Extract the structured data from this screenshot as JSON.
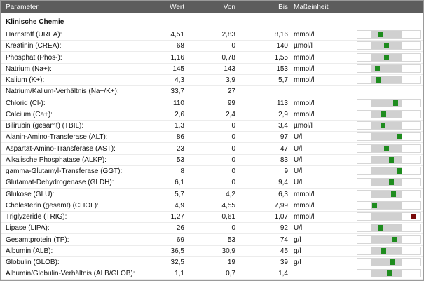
{
  "header": {
    "parameter": "Parameter",
    "wert": "Wert",
    "von": "Von",
    "bis": "Bis",
    "unit": "Maßeinheit"
  },
  "section": "Klinische Chemie",
  "indicator": {
    "in_range_color": "#1e8c1e",
    "out_of_range_color": "#7a0a0a"
  },
  "rows": [
    {
      "name": "Harnstoff (UREA):",
      "wert": "4,51",
      "von": "2,83",
      "bis": "8,16",
      "unit": "mmol/l"
    },
    {
      "name": "Kreatinin (CREA):",
      "wert": "68",
      "von": "0",
      "bis": "140",
      "unit": "µmol/l"
    },
    {
      "name": "Phosphat (Phos-):",
      "wert": "1,16",
      "von": "0,78",
      "bis": "1,55",
      "unit": "mmol/l"
    },
    {
      "name": "Natrium (Na+):",
      "wert": "145",
      "von": "143",
      "bis": "153",
      "unit": "mmol/l"
    },
    {
      "name": "Kalium (K+):",
      "wert": "4,3",
      "von": "3,9",
      "bis": "5,7",
      "unit": "mmol/l"
    },
    {
      "name": "Natrium/Kalium-Verhältnis (Na+/K+):",
      "wert": "33,7",
      "von": "27"
    },
    {
      "name": "Chlorid (Cl-):",
      "wert": "110",
      "von": "99",
      "bis": "113",
      "unit": "mmol/l"
    },
    {
      "name": "Calcium (Ca+):",
      "wert": "2,6",
      "von": "2,4",
      "bis": "2,9",
      "unit": "mmol/l"
    },
    {
      "name": "Bilirubin (gesamt) (TBIL):",
      "wert": "1,3",
      "von": "0",
      "bis": "3,4",
      "unit": "µmol/l"
    },
    {
      "name": "Alanin-Amino-Transferase (ALT):",
      "wert": "86",
      "von": "0",
      "bis": "97",
      "unit": "U/l"
    },
    {
      "name": "Aspartat-Amino-Transferase (AST):",
      "wert": "23",
      "von": "0",
      "bis": "47",
      "unit": "U/l"
    },
    {
      "name": "Alkalische Phosphatase (ALKP):",
      "wert": "53",
      "von": "0",
      "bis": "83",
      "unit": "U/l"
    },
    {
      "name": "gamma-Glutamyl-Transferase (GGT):",
      "wert": "8",
      "von": "0",
      "bis": "9",
      "unit": "U/l"
    },
    {
      "name": "Glutamat-Dehydrogenase (GLDH):",
      "wert": "6,1",
      "von": "0",
      "bis": "9,4",
      "unit": "U/l"
    },
    {
      "name": "Glukose (GLU):",
      "wert": "5,7",
      "von": "4,2",
      "bis": "6,3",
      "unit": "mmol/l"
    },
    {
      "name": "Cholesterin (gesamt) (CHOL):",
      "wert": "4,9",
      "von": "4,55",
      "bis": "7,99",
      "unit": "mmol/l"
    },
    {
      "name": "Triglyzeride (TRIG):",
      "wert": "1,27",
      "von": "0,61",
      "bis": "1,07",
      "unit": "mmol/l"
    },
    {
      "name": "Lipase (LIPA):",
      "wert": "26",
      "von": "0",
      "bis": "92",
      "unit": "U/l"
    },
    {
      "name": "Gesamtprotein (TP):",
      "wert": "69",
      "von": "53",
      "bis": "74",
      "unit": "g/l"
    },
    {
      "name": "Albumin (ALB):",
      "wert": "36,5",
      "von": "30,9",
      "bis": "45",
      "unit": "g/l"
    },
    {
      "name": "Globulin (GLOB):",
      "wert": "32,5",
      "von": "19",
      "bis": "39",
      "unit": "g/l"
    },
    {
      "name": "Albumin/Globulin-Verhältnis (ALB/GLOB):",
      "wert": "1,1",
      "von": "0,7",
      "bis": "1,4"
    }
  ]
}
